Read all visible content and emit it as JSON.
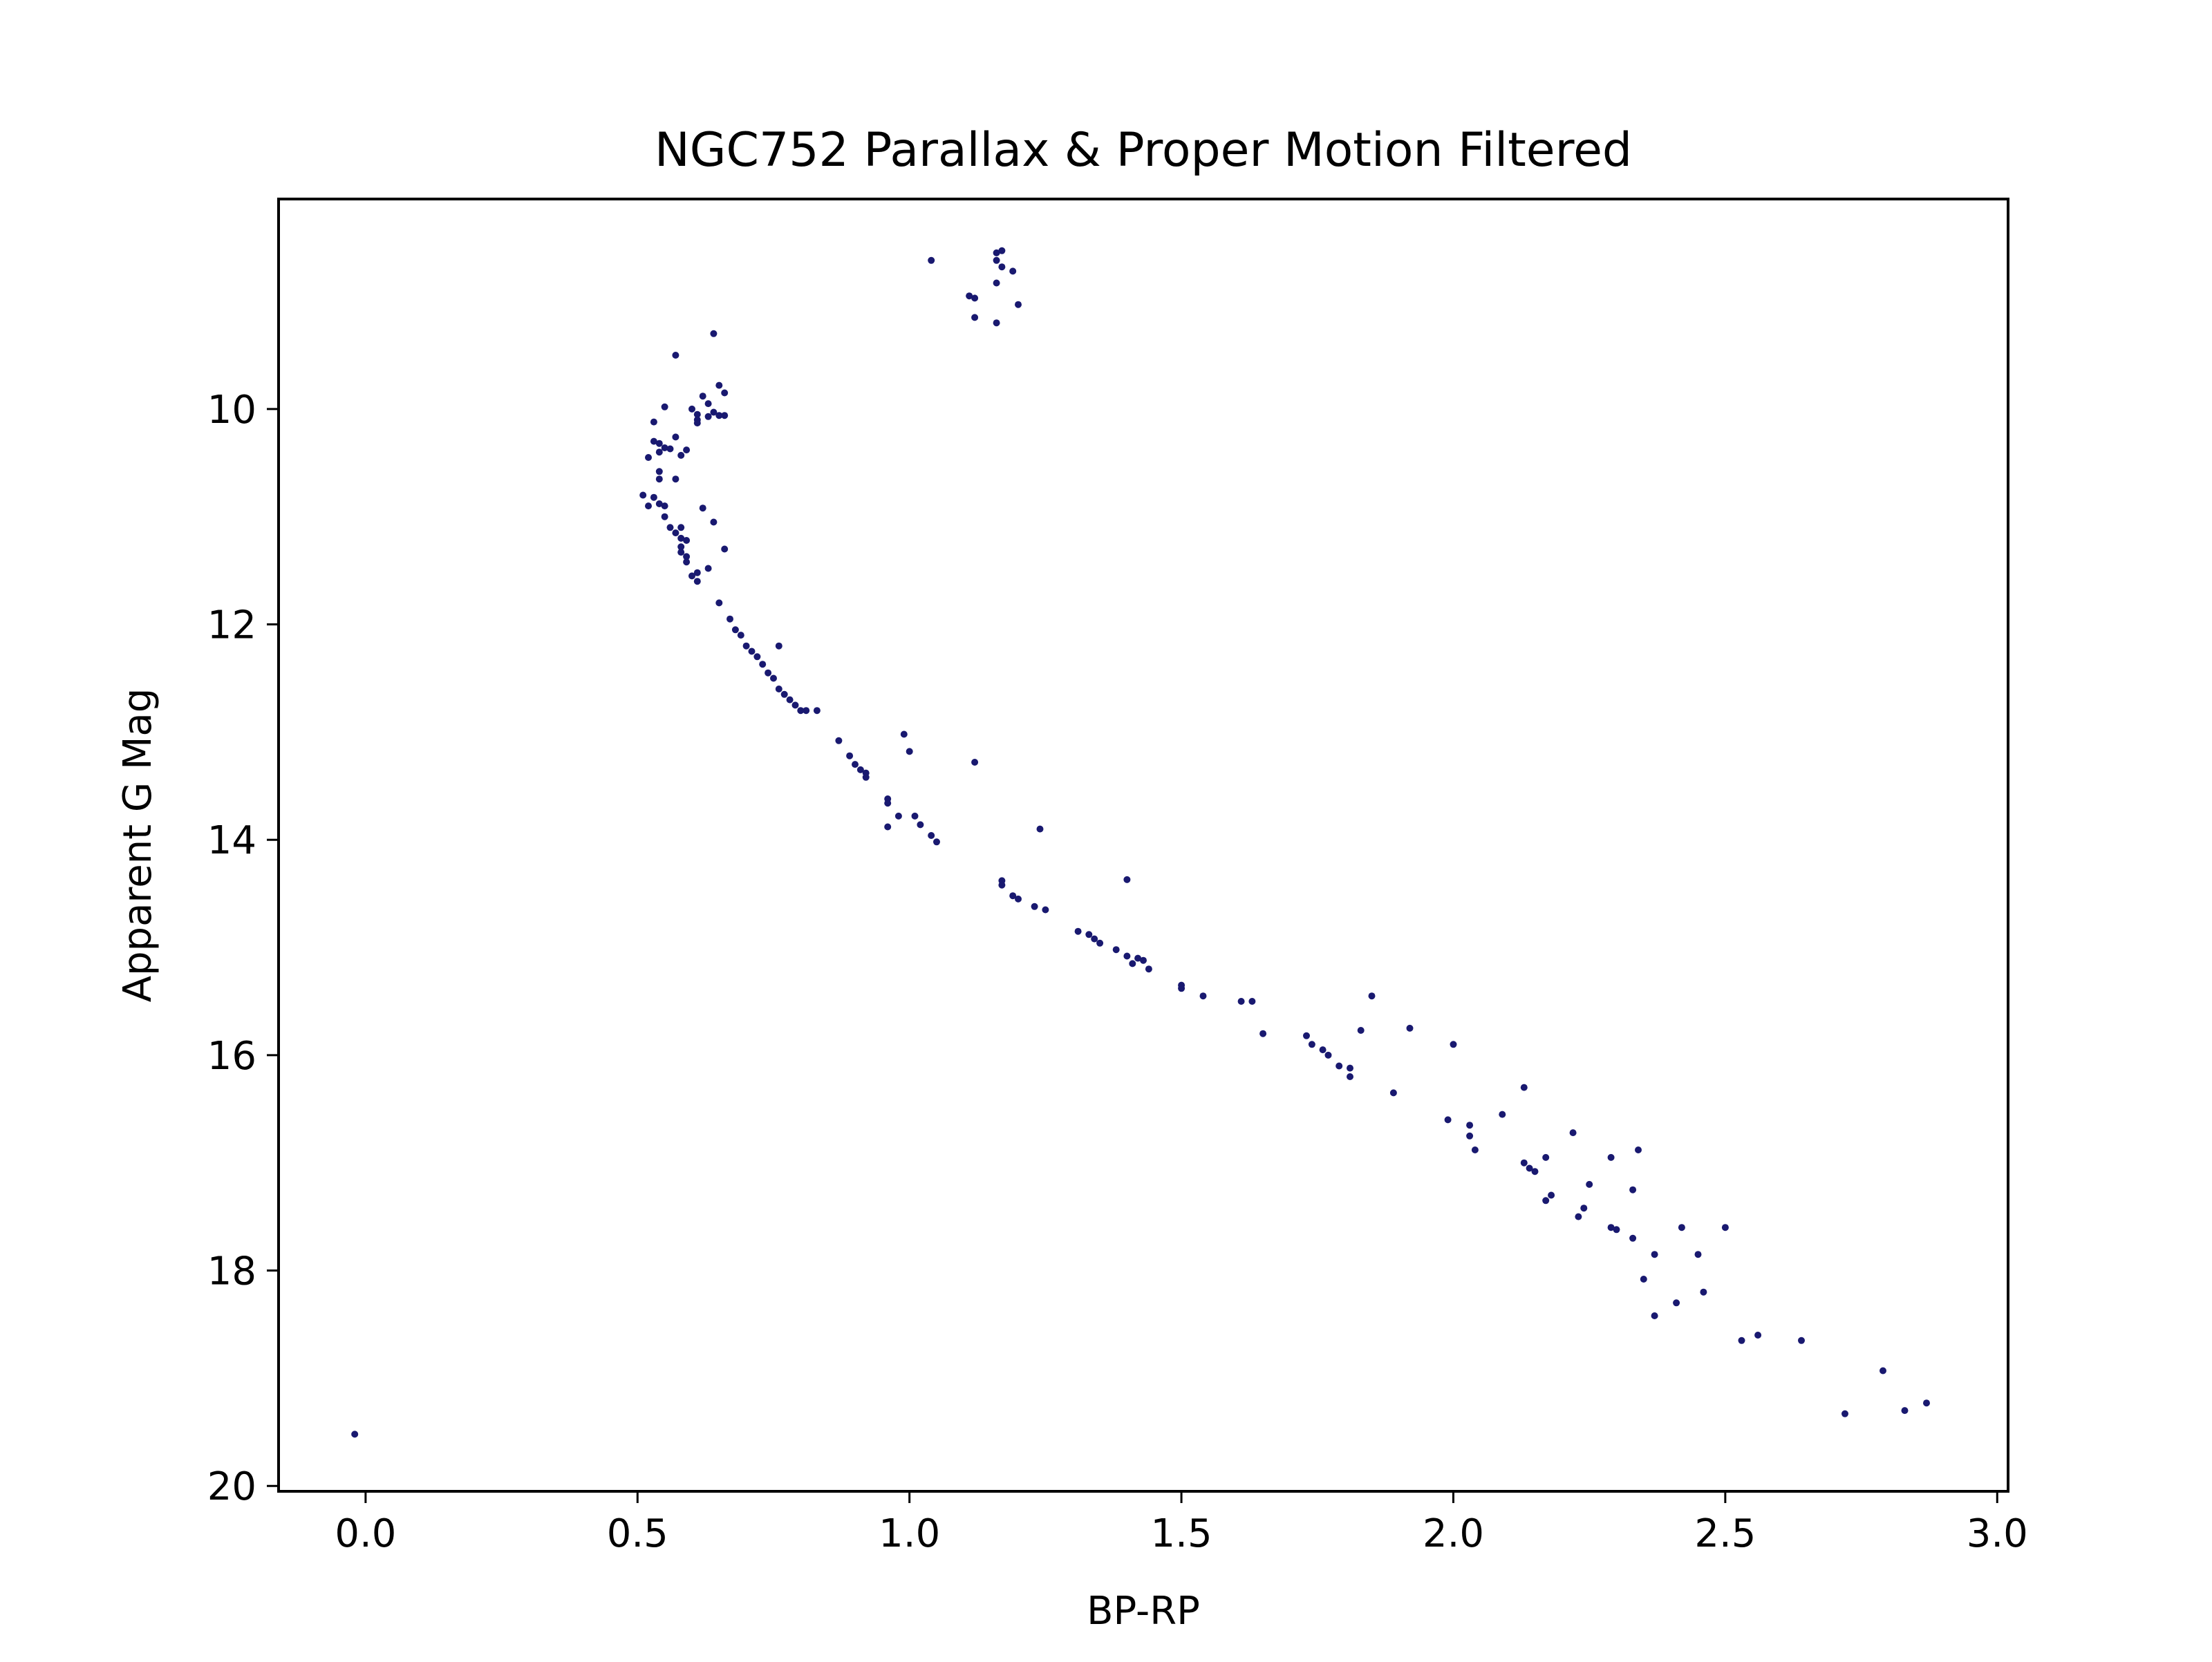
{
  "chart_data": {
    "type": "scatter",
    "title": "NGC752 Parallax & Proper Motion Filtered",
    "xlabel": "BP-RP",
    "ylabel": "Apparent G Mag",
    "xlim": [
      -0.16,
      3.02
    ],
    "ylim": [
      20.05,
      8.05
    ],
    "y_inverted": true,
    "xticks": [
      "0.0",
      "0.5",
      "1.0",
      "1.5",
      "2.0",
      "2.5",
      "3.0"
    ],
    "yticks": [
      "10",
      "12",
      "14",
      "16",
      "18",
      "20"
    ],
    "grid": false,
    "marker_color": "#191970",
    "series": [
      {
        "points": [
          [
            1.04,
            8.62
          ],
          [
            1.16,
            8.55
          ],
          [
            1.17,
            8.53
          ],
          [
            1.16,
            8.62
          ],
          [
            1.17,
            8.68
          ],
          [
            1.19,
            8.72
          ],
          [
            1.16,
            8.83
          ],
          [
            1.11,
            8.95
          ],
          [
            1.12,
            8.97
          ],
          [
            1.2,
            9.03
          ],
          [
            1.12,
            9.15
          ],
          [
            1.16,
            9.2
          ],
          [
            0.64,
            9.3
          ],
          [
            0.57,
            9.5
          ],
          [
            0.65,
            9.78
          ],
          [
            0.66,
            9.85
          ],
          [
            0.62,
            9.88
          ],
          [
            0.63,
            9.95
          ],
          [
            0.55,
            9.98
          ],
          [
            0.6,
            10.0
          ],
          [
            0.64,
            10.03
          ],
          [
            0.61,
            10.05
          ],
          [
            0.65,
            10.06
          ],
          [
            0.66,
            10.06
          ],
          [
            0.63,
            10.07
          ],
          [
            0.61,
            10.1
          ],
          [
            0.61,
            10.13
          ],
          [
            0.53,
            10.12
          ],
          [
            0.57,
            10.26
          ],
          [
            0.53,
            10.3
          ],
          [
            0.54,
            10.32
          ],
          [
            0.55,
            10.36
          ],
          [
            0.56,
            10.37
          ],
          [
            0.54,
            10.4
          ],
          [
            0.52,
            10.45
          ],
          [
            0.59,
            10.38
          ],
          [
            0.58,
            10.43
          ],
          [
            0.54,
            10.58
          ],
          [
            0.54,
            10.65
          ],
          [
            0.57,
            10.65
          ],
          [
            0.51,
            10.8
          ],
          [
            0.53,
            10.82
          ],
          [
            0.52,
            10.9
          ],
          [
            0.54,
            10.88
          ],
          [
            0.55,
            10.9
          ],
          [
            0.62,
            10.92
          ],
          [
            0.55,
            11.0
          ],
          [
            0.64,
            11.05
          ],
          [
            0.56,
            11.1
          ],
          [
            0.58,
            11.1
          ],
          [
            0.57,
            11.15
          ],
          [
            0.58,
            11.2
          ],
          [
            0.59,
            11.22
          ],
          [
            0.58,
            11.28
          ],
          [
            0.66,
            11.3
          ],
          [
            0.58,
            11.33
          ],
          [
            0.59,
            11.37
          ],
          [
            0.59,
            11.42
          ],
          [
            0.63,
            11.48
          ],
          [
            0.61,
            11.52
          ],
          [
            0.6,
            11.55
          ],
          [
            0.61,
            11.6
          ],
          [
            0.65,
            11.8
          ],
          [
            0.67,
            11.95
          ],
          [
            0.68,
            12.05
          ],
          [
            0.69,
            12.1
          ],
          [
            0.7,
            12.2
          ],
          [
            0.71,
            12.25
          ],
          [
            0.76,
            12.2
          ],
          [
            0.72,
            12.3
          ],
          [
            0.73,
            12.37
          ],
          [
            0.74,
            12.45
          ],
          [
            0.75,
            12.5
          ],
          [
            0.76,
            12.6
          ],
          [
            0.77,
            12.65
          ],
          [
            0.78,
            12.7
          ],
          [
            0.79,
            12.75
          ],
          [
            0.8,
            12.8
          ],
          [
            0.81,
            12.8
          ],
          [
            0.83,
            12.8
          ],
          [
            0.87,
            13.08
          ],
          [
            0.89,
            13.22
          ],
          [
            0.9,
            13.3
          ],
          [
            0.91,
            13.35
          ],
          [
            0.92,
            13.38
          ],
          [
            0.92,
            13.42
          ],
          [
            0.99,
            13.02
          ],
          [
            1.0,
            13.18
          ],
          [
            1.12,
            13.28
          ],
          [
            0.96,
            13.62
          ],
          [
            0.96,
            13.66
          ],
          [
            0.98,
            13.78
          ],
          [
            1.01,
            13.78
          ],
          [
            1.02,
            13.86
          ],
          [
            1.04,
            13.96
          ],
          [
            1.05,
            14.02
          ],
          [
            0.96,
            13.88
          ],
          [
            1.24,
            13.9
          ],
          [
            1.17,
            14.38
          ],
          [
            1.17,
            14.42
          ],
          [
            1.19,
            14.52
          ],
          [
            1.2,
            14.55
          ],
          [
            1.23,
            14.62
          ],
          [
            1.25,
            14.65
          ],
          [
            1.4,
            14.37
          ],
          [
            1.31,
            14.85
          ],
          [
            1.33,
            14.88
          ],
          [
            1.34,
            14.92
          ],
          [
            1.35,
            14.96
          ],
          [
            1.38,
            15.02
          ],
          [
            1.4,
            15.08
          ],
          [
            1.42,
            15.1
          ],
          [
            1.43,
            15.12
          ],
          [
            1.41,
            15.15
          ],
          [
            1.44,
            15.2
          ],
          [
            1.5,
            15.35
          ],
          [
            1.5,
            15.38
          ],
          [
            1.54,
            15.45
          ],
          [
            1.61,
            15.5
          ],
          [
            1.63,
            15.5
          ],
          [
            1.65,
            15.8
          ],
          [
            1.73,
            15.82
          ],
          [
            1.74,
            15.9
          ],
          [
            1.76,
            15.95
          ],
          [
            1.77,
            16.0
          ],
          [
            1.79,
            16.1
          ],
          [
            1.81,
            16.12
          ],
          [
            1.81,
            16.2
          ],
          [
            1.83,
            15.77
          ],
          [
            1.85,
            15.45
          ],
          [
            1.89,
            16.35
          ],
          [
            1.92,
            15.75
          ],
          [
            2.0,
            15.9
          ],
          [
            1.99,
            16.6
          ],
          [
            2.03,
            16.65
          ],
          [
            2.03,
            16.75
          ],
          [
            2.04,
            16.88
          ],
          [
            2.09,
            16.55
          ],
          [
            2.13,
            16.3
          ],
          [
            2.13,
            17.0
          ],
          [
            2.14,
            17.05
          ],
          [
            2.15,
            17.08
          ],
          [
            2.17,
            16.95
          ],
          [
            2.17,
            17.35
          ],
          [
            2.18,
            17.3
          ],
          [
            2.22,
            16.72
          ],
          [
            2.23,
            17.5
          ],
          [
            2.24,
            17.42
          ],
          [
            2.25,
            17.2
          ],
          [
            2.29,
            16.95
          ],
          [
            2.29,
            17.6
          ],
          [
            2.3,
            17.62
          ],
          [
            2.33,
            17.25
          ],
          [
            2.33,
            17.7
          ],
          [
            2.34,
            16.88
          ],
          [
            2.35,
            18.08
          ],
          [
            2.37,
            17.85
          ],
          [
            2.37,
            18.42
          ],
          [
            2.41,
            18.3
          ],
          [
            2.42,
            17.6
          ],
          [
            2.45,
            17.85
          ],
          [
            2.46,
            18.2
          ],
          [
            2.5,
            17.6
          ],
          [
            2.53,
            18.65
          ],
          [
            2.56,
            18.6
          ],
          [
            2.64,
            18.65
          ],
          [
            2.72,
            19.33
          ],
          [
            2.79,
            18.93
          ],
          [
            2.83,
            19.3
          ],
          [
            2.87,
            19.23
          ],
          [
            -0.02,
            19.52
          ]
        ]
      }
    ]
  }
}
